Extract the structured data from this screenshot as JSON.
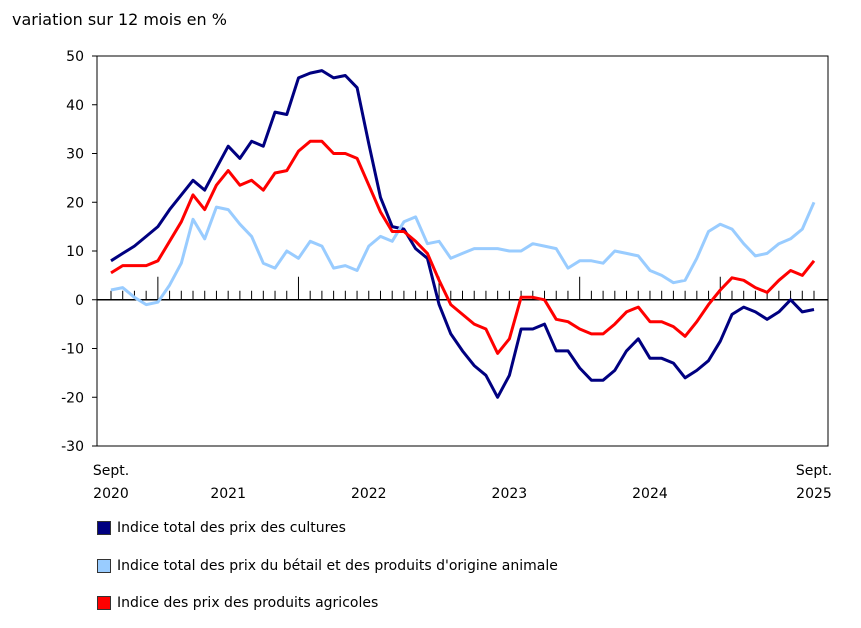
{
  "chart_data": {
    "type": "line",
    "ylabel": "variation sur 12 mois en %",
    "ylim": [
      -30,
      50
    ],
    "yticks": [
      "50",
      "40",
      "30",
      "20",
      "10",
      "0",
      "-10",
      "-20",
      "-30"
    ],
    "x_start": "2020-09",
    "x_end": "2025-09",
    "xtick_labels": [
      {
        "line1": "Sept.",
        "line2": "2020"
      },
      {
        "line1": "",
        "line2": "2021"
      },
      {
        "line1": "",
        "line2": "2022"
      },
      {
        "line1": "",
        "line2": "2023"
      },
      {
        "line1": "",
        "line2": "2024"
      },
      {
        "line1": "Sept.",
        "line2": "2025"
      }
    ],
    "grid": false,
    "legend_position": "bottom",
    "series": [
      {
        "name": "Indice total des prix des cultures",
        "color": "#000080",
        "values": [
          8,
          9.5,
          11,
          13,
          15,
          18.5,
          21.5,
          24.5,
          22.5,
          27,
          31.5,
          29,
          32.5,
          31.5,
          38.5,
          38,
          45.5,
          46.5,
          47,
          45.5,
          46,
          43.5,
          32,
          21,
          15,
          14.5,
          10.5,
          8.5,
          -1,
          -7,
          -10.5,
          -13.5,
          -15.5,
          -20,
          -15.5,
          -6,
          -6,
          -5,
          -10.5,
          -10.5,
          -14,
          -16.5,
          -16.5,
          -14.5,
          -10.5,
          -8,
          -12,
          -12,
          -13,
          -16,
          -14.5,
          -12.5,
          -8.5,
          -3,
          -1.5,
          -2.5,
          -4,
          -2.5,
          0,
          -2.5,
          -2
        ]
      },
      {
        "name": "Indice total des prix du bétail et des produits d'origine animale",
        "color": "#99ccff",
        "values": [
          2,
          2.5,
          0.5,
          -1,
          -0.5,
          3,
          7.5,
          16.5,
          12.5,
          19,
          18.5,
          15.5,
          13,
          7.5,
          6.5,
          10,
          8.5,
          12,
          11,
          6.5,
          7,
          6,
          11,
          13,
          12,
          16,
          17,
          11.5,
          12,
          8.5,
          9.5,
          10.5,
          10.5,
          10.5,
          10,
          10,
          11.5,
          11,
          10.5,
          6.5,
          8,
          8,
          7.5,
          10,
          9.5,
          9,
          6,
          5,
          3.5,
          4,
          8.5,
          14,
          15.5,
          14.5,
          11.5,
          9,
          9.5,
          11.5,
          12.5,
          14.5,
          20
        ]
      },
      {
        "name": "Indice des prix des produits agricoles",
        "color": "#ff0000",
        "values": [
          5.5,
          7,
          7,
          7,
          8,
          12,
          16,
          21.5,
          18.5,
          23.5,
          26.5,
          23.5,
          24.5,
          22.5,
          26,
          26.5,
          30.5,
          32.5,
          32.5,
          30,
          30,
          29,
          23.5,
          18,
          14,
          14,
          12,
          9.5,
          4,
          -1,
          -3,
          -5,
          -6,
          -11,
          -8,
          0.5,
          0.5,
          0,
          -4,
          -4.5,
          -6,
          -7,
          -7,
          -5,
          -2.5,
          -1.5,
          -4.5,
          -4.5,
          -5.5,
          -7.5,
          -4.5,
          -1,
          2,
          4.5,
          4,
          2.5,
          1.5,
          4,
          6,
          5,
          8
        ]
      }
    ]
  }
}
